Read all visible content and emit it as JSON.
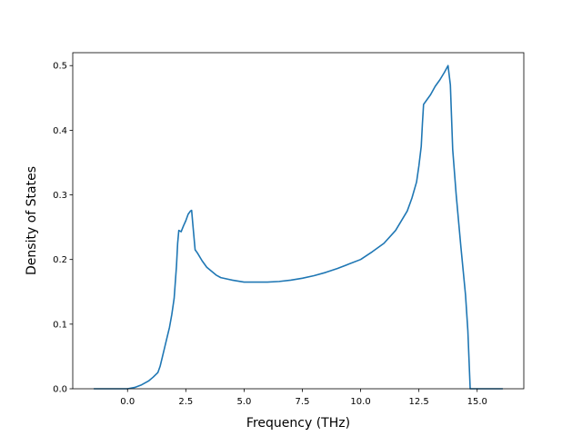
{
  "chart_data": {
    "type": "line",
    "title": "",
    "xlabel": "Frequency (THz)",
    "ylabel": "Density of States",
    "xlim": [
      -2.35,
      17.0
    ],
    "ylim": [
      0,
      0.52
    ],
    "grid": false,
    "legend": "none",
    "x_ticks": [
      0.0,
      2.5,
      5.0,
      7.5,
      10.0,
      12.5,
      15.0
    ],
    "x_tick_labels": [
      "0.0",
      "2.5",
      "5.0",
      "7.5",
      "10.0",
      "12.5",
      "15.0"
    ],
    "y_ticks": [
      0.0,
      0.1,
      0.2,
      0.3,
      0.4,
      0.5
    ],
    "y_tick_labels": [
      "0.0",
      "0.1",
      "0.2",
      "0.3",
      "0.4",
      "0.5"
    ],
    "series": [
      {
        "color": "#1f77b4",
        "x": [
          -1.45,
          0.0,
          0.3,
          0.6,
          0.9,
          1.1,
          1.3,
          1.4,
          1.5,
          1.6,
          1.7,
          1.8,
          1.9,
          2.0,
          2.05,
          2.1,
          2.15,
          2.2,
          2.3,
          2.4,
          2.5,
          2.6,
          2.7,
          2.75,
          2.8,
          2.9,
          3.0,
          3.2,
          3.4,
          3.6,
          3.8,
          4.0,
          4.5,
          5.0,
          5.5,
          6.0,
          6.5,
          7.0,
          7.5,
          8.0,
          8.5,
          9.0,
          9.5,
          10.0,
          10.5,
          11.0,
          11.5,
          12.0,
          12.2,
          12.4,
          12.5,
          12.6,
          12.65,
          12.7,
          12.8,
          13.0,
          13.2,
          13.4,
          13.6,
          13.75,
          13.85,
          13.95,
          14.1,
          14.3,
          14.5,
          14.6,
          14.7,
          15.0,
          16.1
        ],
        "y": [
          0.0,
          0.0,
          0.002,
          0.006,
          0.012,
          0.018,
          0.025,
          0.035,
          0.05,
          0.065,
          0.08,
          0.095,
          0.115,
          0.14,
          0.165,
          0.19,
          0.225,
          0.245,
          0.243,
          0.252,
          0.26,
          0.27,
          0.275,
          0.276,
          0.255,
          0.215,
          0.21,
          0.198,
          0.188,
          0.182,
          0.176,
          0.172,
          0.168,
          0.165,
          0.165,
          0.165,
          0.166,
          0.168,
          0.171,
          0.175,
          0.18,
          0.186,
          0.193,
          0.2,
          0.212,
          0.225,
          0.245,
          0.275,
          0.295,
          0.32,
          0.345,
          0.375,
          0.41,
          0.44,
          0.445,
          0.455,
          0.468,
          0.478,
          0.49,
          0.5,
          0.47,
          0.37,
          0.3,
          0.22,
          0.145,
          0.09,
          0.0,
          0.0,
          0.0
        ]
      }
    ]
  }
}
